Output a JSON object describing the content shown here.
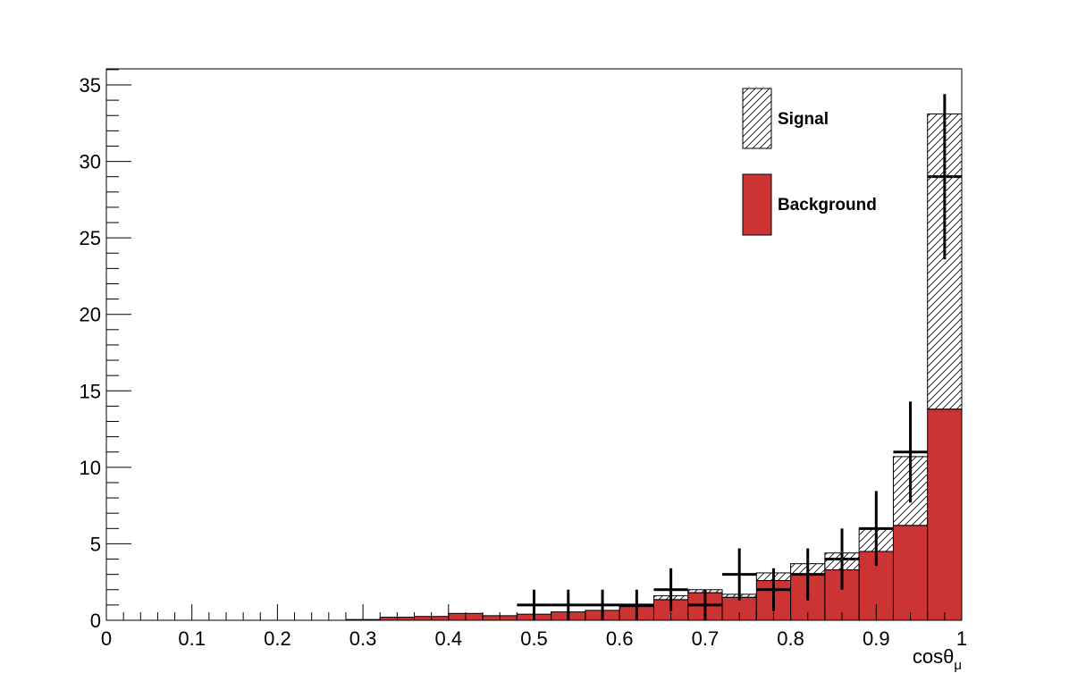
{
  "chart_data": {
    "type": "bar",
    "xlabel": "cosθ",
    "xlabel_subscript": "μ",
    "xlim": [
      0,
      1
    ],
    "ylim": [
      0,
      36
    ],
    "grid": false,
    "legend_placement": "top-right",
    "bin_edges": [
      0,
      0.04,
      0.08,
      0.12,
      0.16,
      0.2,
      0.24,
      0.28,
      0.32,
      0.36,
      0.4,
      0.44,
      0.48,
      0.52,
      0.56,
      0.6,
      0.64,
      0.68,
      0.72,
      0.76,
      0.8,
      0.84,
      0.88,
      0.92,
      0.96,
      1.0
    ],
    "stacked": true,
    "series": [
      {
        "name": "Background",
        "fill": "solid",
        "color": "#cc3333",
        "values": [
          0,
          0,
          0,
          0,
          0,
          0,
          0,
          0.05,
          0.2,
          0.25,
          0.45,
          0.3,
          0.4,
          0.55,
          0.65,
          0.9,
          1.35,
          1.8,
          1.5,
          2.6,
          3.0,
          3.3,
          4.5,
          6.2,
          13.8
        ]
      },
      {
        "name": "Signal",
        "fill": "hatched",
        "color": "#000000",
        "values": [
          0,
          0,
          0,
          0,
          0,
          0,
          0,
          0,
          0,
          0,
          0,
          0,
          0,
          0,
          0,
          0.1,
          0.25,
          0.2,
          0.2,
          0.5,
          0.7,
          1.1,
          1.5,
          4.5,
          19.3
        ]
      }
    ],
    "data_points": [
      {
        "x": 0.5,
        "xerr": 0.02,
        "y": 1,
        "yerr_low": 1,
        "yerr_high": 1
      },
      {
        "x": 0.54,
        "xerr": 0.02,
        "y": 1,
        "yerr_low": 1,
        "yerr_high": 1
      },
      {
        "x": 0.58,
        "xerr": 0.02,
        "y": 1,
        "yerr_low": 1,
        "yerr_high": 1
      },
      {
        "x": 0.62,
        "xerr": 0.02,
        "y": 1,
        "yerr_low": 1,
        "yerr_high": 1
      },
      {
        "x": 0.66,
        "xerr": 0.02,
        "y": 2,
        "yerr_low": 1.4,
        "yerr_high": 1.4
      },
      {
        "x": 0.7,
        "xerr": 0.02,
        "y": 1,
        "yerr_low": 1,
        "yerr_high": 1
      },
      {
        "x": 0.74,
        "xerr": 0.02,
        "y": 3,
        "yerr_low": 1.7,
        "yerr_high": 1.7
      },
      {
        "x": 0.78,
        "xerr": 0.02,
        "y": 2,
        "yerr_low": 1.4,
        "yerr_high": 1.4
      },
      {
        "x": 0.82,
        "xerr": 0.02,
        "y": 3,
        "yerr_low": 1.7,
        "yerr_high": 1.7
      },
      {
        "x": 0.86,
        "xerr": 0.02,
        "y": 4,
        "yerr_low": 2.0,
        "yerr_high": 2.0
      },
      {
        "x": 0.9,
        "xerr": 0.02,
        "y": 6,
        "yerr_low": 2.45,
        "yerr_high": 2.45
      },
      {
        "x": 0.94,
        "xerr": 0.02,
        "y": 11,
        "yerr_low": 3.3,
        "yerr_high": 3.3
      },
      {
        "x": 0.98,
        "xerr": 0.02,
        "y": 29,
        "yerr_low": 5.4,
        "yerr_high": 5.4
      }
    ],
    "x_ticks": [
      {
        "value": 0,
        "label": "0"
      },
      {
        "value": 0.1,
        "label": "0.1"
      },
      {
        "value": 0.2,
        "label": "0.2"
      },
      {
        "value": 0.3,
        "label": "0.3"
      },
      {
        "value": 0.4,
        "label": "0.4"
      },
      {
        "value": 0.5,
        "label": "0.5"
      },
      {
        "value": 0.6,
        "label": "0.6"
      },
      {
        "value": 0.7,
        "label": "0.7"
      },
      {
        "value": 0.8,
        "label": "0.8"
      },
      {
        "value": 0.9,
        "label": "0.9"
      },
      {
        "value": 1,
        "label": "1"
      }
    ],
    "y_ticks": [
      {
        "value": 0,
        "label": "0"
      },
      {
        "value": 5,
        "label": "5"
      },
      {
        "value": 10,
        "label": "10"
      },
      {
        "value": 15,
        "label": "15"
      },
      {
        "value": 20,
        "label": "20"
      },
      {
        "value": 25,
        "label": "25"
      },
      {
        "value": 30,
        "label": "30"
      },
      {
        "value": 35,
        "label": "35"
      }
    ],
    "legend": [
      {
        "label": "Signal",
        "fill": "hatched"
      },
      {
        "label": "Background",
        "fill": "solid"
      }
    ]
  }
}
